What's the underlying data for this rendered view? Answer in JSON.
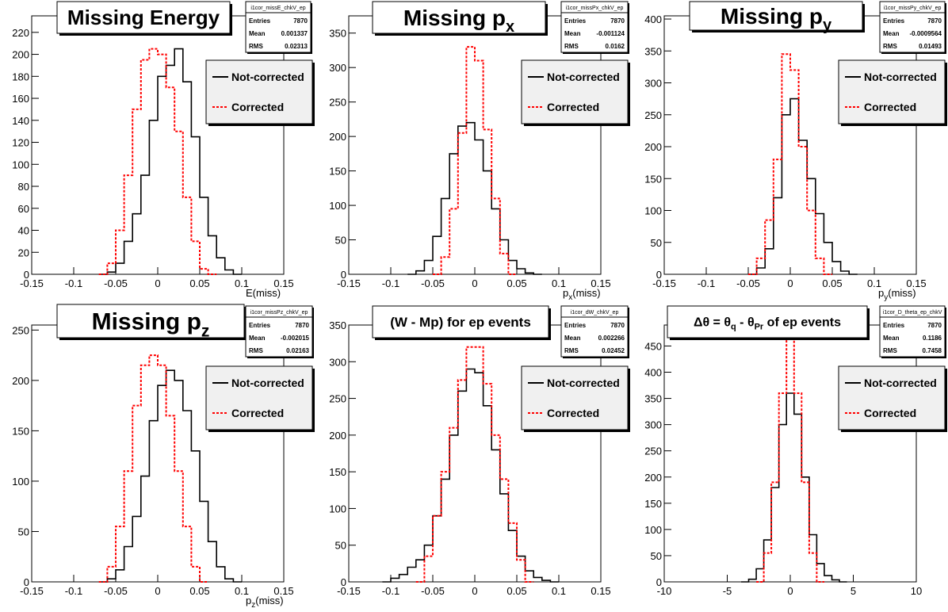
{
  "panels": [
    {
      "title": "Missing Energy",
      "stats": {
        "name": "i1cor_missE_chkV_ep",
        "entries": "7870",
        "mean": "0.001337",
        "rms": "0.02313"
      },
      "legend": [
        "Not-corrected",
        "Corrected"
      ],
      "xlabel": "E(miss)"
    },
    {
      "title": "Missing p",
      "title_sub": "x",
      "stats": {
        "name": "i1cor_missPx_chkV_ep",
        "entries": "7870",
        "mean": "-0.001124",
        "rms": "0.0162"
      },
      "legend": [
        "Not-corrected",
        "Corrected"
      ],
      "xlabel": "p",
      "xlabel_sub": "x",
      "xlabel_tail": "(miss)"
    },
    {
      "title": "Missing p",
      "title_sub": "y",
      "stats": {
        "name": "i1cor_missPy_chkV_ep",
        "entries": "7870",
        "mean": "-0.0009564",
        "rms": "0.01493"
      },
      "legend": [
        "Not-corrected",
        "Corrected"
      ],
      "xlabel": "p",
      "xlabel_sub": "y",
      "xlabel_tail": "(miss)"
    },
    {
      "title": "Missing p",
      "title_sub": "z",
      "stats": {
        "name": "i1cor_missPz_chkV_ep",
        "entries": "7870",
        "mean": "-0.002015",
        "rms": "0.02163"
      },
      "legend": [
        "Not-corrected",
        "Corrected"
      ],
      "xlabel": "p",
      "xlabel_sub": "z",
      "xlabel_tail": "(miss)"
    },
    {
      "title": "(W - Mp) for ep events",
      "stats": {
        "name": "i1cor_dW_chkV_ep",
        "entries": "7870",
        "mean": "0.002266",
        "rms": "0.02452"
      },
      "legend": [
        "Not-corrected",
        "Corrected"
      ],
      "xlabel": ""
    },
    {
      "title": "Δθ = θ",
      "title_parts": [
        "Δθ = θ",
        "q",
        " - θ",
        "Pr",
        " of ep events"
      ],
      "stats": {
        "name": "i1cor_D_theta_ep_chkV",
        "entries": "7870",
        "mean": "0.1186",
        "rms": "0.7458"
      },
      "legend": [
        "Not-corrected",
        "Corrected"
      ],
      "xlabel": ""
    }
  ],
  "stat_labels": {
    "entries": "Entries",
    "mean": "Mean",
    "rms": "RMS"
  },
  "colors": {
    "uncorrected": "#000000",
    "corrected": "#ff0000"
  },
  "chart_data": [
    {
      "type": "line",
      "xlim": [
        -0.15,
        0.15
      ],
      "ylim": [
        0,
        235
      ],
      "xticks": [
        "-0.15",
        "-0.1",
        "-0.05",
        "0",
        "0.05",
        "0.1",
        "0.15"
      ],
      "yticks": [
        "0",
        "20",
        "40",
        "60",
        "80",
        "100",
        "120",
        "140",
        "160",
        "180",
        "200",
        "220"
      ],
      "xtick_values": [
        -0.15,
        -0.1,
        -0.05,
        0,
        0.05,
        0.1,
        0.15
      ],
      "ytick_values": [
        0,
        20,
        40,
        60,
        80,
        100,
        120,
        140,
        160,
        180,
        200,
        220
      ],
      "series": [
        {
          "name": "Not-corrected",
          "x": [
            -0.065,
            -0.055,
            -0.045,
            -0.035,
            -0.025,
            -0.015,
            -0.005,
            0.005,
            0.015,
            0.025,
            0.035,
            0.045,
            0.055,
            0.065,
            0.075,
            0.085,
            0.095
          ],
          "y": [
            0,
            2,
            10,
            30,
            55,
            90,
            140,
            180,
            190,
            205,
            175,
            125,
            70,
            35,
            15,
            4,
            0
          ]
        },
        {
          "name": "Corrected",
          "x": [
            -0.065,
            -0.055,
            -0.045,
            -0.035,
            -0.025,
            -0.015,
            -0.005,
            0.005,
            0.015,
            0.025,
            0.035,
            0.045,
            0.055,
            0.065
          ],
          "y": [
            0,
            10,
            40,
            90,
            150,
            195,
            205,
            200,
            170,
            130,
            70,
            30,
            5,
            0
          ]
        }
      ]
    },
    {
      "type": "line",
      "xlim": [
        -0.15,
        0.15
      ],
      "ylim": [
        0,
        375
      ],
      "xticks": [
        "-0.15",
        "-0.1",
        "-0.05",
        "0",
        "0.05",
        "0.1",
        "0.15"
      ],
      "yticks": [
        "0",
        "50",
        "100",
        "150",
        "200",
        "250",
        "300",
        "350"
      ],
      "xtick_values": [
        -0.15,
        -0.1,
        -0.05,
        0,
        0.05,
        0.1,
        0.15
      ],
      "ytick_values": [
        0,
        50,
        100,
        150,
        200,
        250,
        300,
        350
      ],
      "series": [
        {
          "name": "Not-corrected",
          "x": [
            -0.075,
            -0.065,
            -0.055,
            -0.045,
            -0.035,
            -0.025,
            -0.015,
            -0.005,
            0.005,
            0.015,
            0.025,
            0.035,
            0.045,
            0.055,
            0.065,
            0.075
          ],
          "y": [
            0,
            5,
            20,
            55,
            110,
            175,
            215,
            220,
            195,
            150,
            95,
            50,
            20,
            8,
            2,
            0
          ]
        },
        {
          "name": "Corrected",
          "x": [
            -0.045,
            -0.035,
            -0.025,
            -0.015,
            -0.005,
            0.005,
            0.015,
            0.025,
            0.035,
            0.045
          ],
          "y": [
            0,
            25,
            95,
            205,
            330,
            310,
            210,
            110,
            30,
            0
          ]
        }
      ]
    },
    {
      "type": "line",
      "xlim": [
        -0.15,
        0.15
      ],
      "ylim": [
        0,
        405
      ],
      "xticks": [
        "-0.15",
        "-0.1",
        "-0.05",
        "0",
        "0.05",
        "0.1",
        "0.15"
      ],
      "yticks": [
        "0",
        "50",
        "100",
        "150",
        "200",
        "250",
        "300",
        "350",
        "400"
      ],
      "xtick_values": [
        -0.15,
        -0.1,
        -0.05,
        0,
        0.05,
        0.1,
        0.15
      ],
      "ytick_values": [
        0,
        50,
        100,
        150,
        200,
        250,
        300,
        350,
        400
      ],
      "series": [
        {
          "name": "Not-corrected",
          "x": [
            -0.045,
            -0.035,
            -0.025,
            -0.015,
            -0.005,
            0.005,
            0.015,
            0.025,
            0.035,
            0.045,
            0.055,
            0.065,
            0.075
          ],
          "y": [
            0,
            10,
            40,
            120,
            250,
            275,
            210,
            150,
            95,
            50,
            20,
            5,
            0
          ]
        },
        {
          "name": "Corrected",
          "x": [
            -0.045,
            -0.035,
            -0.025,
            -0.015,
            -0.005,
            0.005,
            0.015,
            0.025,
            0.035,
            0.045
          ],
          "y": [
            0,
            25,
            85,
            180,
            345,
            320,
            200,
            100,
            25,
            0
          ]
        }
      ]
    },
    {
      "type": "line",
      "xlim": [
        -0.15,
        0.15
      ],
      "ylim": [
        0,
        255
      ],
      "xticks": [
        "-0.15",
        "-0.1",
        "-0.05",
        "0",
        "0.05",
        "0.1",
        "0.15"
      ],
      "yticks": [
        "0",
        "50",
        "100",
        "150",
        "200",
        "250"
      ],
      "xtick_values": [
        -0.15,
        -0.1,
        -0.05,
        0,
        0.05,
        0.1,
        0.15
      ],
      "ytick_values": [
        0,
        50,
        100,
        150,
        200,
        250
      ],
      "series": [
        {
          "name": "Not-corrected",
          "x": [
            -0.065,
            -0.055,
            -0.045,
            -0.035,
            -0.025,
            -0.015,
            -0.005,
            0.005,
            0.015,
            0.025,
            0.035,
            0.045,
            0.055,
            0.065,
            0.075,
            0.085,
            0.095
          ],
          "y": [
            0,
            3,
            12,
            35,
            65,
            105,
            160,
            195,
            210,
            200,
            170,
            130,
            80,
            40,
            15,
            3,
            0
          ]
        },
        {
          "name": "Corrected",
          "x": [
            -0.065,
            -0.055,
            -0.045,
            -0.035,
            -0.025,
            -0.015,
            -0.005,
            0.005,
            0.015,
            0.025,
            0.035,
            0.045,
            0.055
          ],
          "y": [
            0,
            15,
            55,
            110,
            175,
            215,
            225,
            215,
            165,
            110,
            55,
            15,
            0
          ]
        }
      ]
    },
    {
      "type": "line",
      "xlim": [
        -0.15,
        0.15
      ],
      "ylim": [
        0,
        350
      ],
      "xticks": [
        "-0.15",
        "-0.1",
        "-0.05",
        "0",
        "0.05",
        "0.1",
        "0.15"
      ],
      "yticks": [
        "0",
        "50",
        "100",
        "150",
        "200",
        "250",
        "300",
        "350"
      ],
      "xtick_values": [
        -0.15,
        -0.1,
        -0.05,
        0,
        0.05,
        0.1,
        0.15
      ],
      "ytick_values": [
        0,
        50,
        100,
        150,
        200,
        250,
        300,
        350
      ],
      "series": [
        {
          "name": "Not-corrected",
          "x": [
            -0.105,
            -0.095,
            -0.085,
            -0.075,
            -0.065,
            -0.055,
            -0.045,
            -0.035,
            -0.025,
            -0.015,
            -0.005,
            0.005,
            0.015,
            0.025,
            0.035,
            0.045,
            0.055,
            0.065,
            0.075,
            0.085,
            0.095
          ],
          "y": [
            0,
            5,
            10,
            20,
            30,
            50,
            90,
            140,
            200,
            260,
            290,
            285,
            240,
            180,
            120,
            70,
            35,
            15,
            6,
            2,
            0
          ]
        },
        {
          "name": "Corrected",
          "x": [
            -0.065,
            -0.055,
            -0.045,
            -0.035,
            -0.025,
            -0.015,
            -0.005,
            0.005,
            0.015,
            0.025,
            0.035,
            0.045,
            0.055,
            0.065
          ],
          "y": [
            0,
            35,
            90,
            150,
            210,
            275,
            320,
            320,
            270,
            200,
            140,
            80,
            30,
            0
          ]
        }
      ]
    },
    {
      "type": "line",
      "xlim": [
        -10,
        10
      ],
      "ylim": [
        0,
        490
      ],
      "xticks": [
        "-10",
        "-5",
        "0",
        "5",
        "10"
      ],
      "yticks": [
        "0",
        "50",
        "100",
        "150",
        "200",
        "250",
        "300",
        "350",
        "400",
        "450"
      ],
      "xtick_values": [
        -10,
        -5,
        0,
        5,
        10
      ],
      "ytick_values": [
        0,
        50,
        100,
        150,
        200,
        250,
        300,
        350,
        400,
        450
      ],
      "series": [
        {
          "name": "Not-corrected",
          "x": [
            -3.6,
            -3.0,
            -2.4,
            -1.8,
            -1.2,
            -0.6,
            0.0,
            0.6,
            1.2,
            1.8,
            2.4,
            3.0,
            3.6,
            4.2
          ],
          "y": [
            0,
            5,
            25,
            80,
            180,
            300,
            360,
            320,
            200,
            90,
            35,
            12,
            4,
            0
          ]
        },
        {
          "name": "Corrected",
          "x": [
            -2.4,
            -1.8,
            -1.2,
            -0.6,
            0.0,
            0.6,
            1.2,
            1.8,
            2.4
          ],
          "y": [
            0,
            55,
            190,
            360,
            470,
            360,
            190,
            55,
            0
          ]
        }
      ]
    }
  ]
}
